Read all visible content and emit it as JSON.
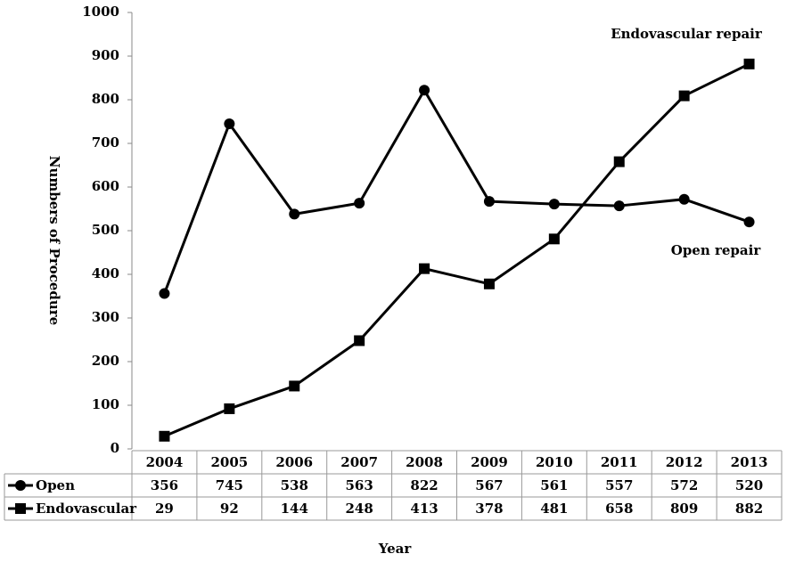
{
  "chart_data": {
    "type": "line",
    "y_label": "Numbers of Procedure",
    "x_label": "Year",
    "annotations": [
      "Endovascular repair",
      "Open repair"
    ],
    "categories": [
      "2004",
      "2005",
      "2006",
      "2007",
      "2008",
      "2009",
      "2010",
      "2011",
      "2012",
      "2013"
    ],
    "series": [
      {
        "name": "Open",
        "color": "#000000",
        "marker": "circle",
        "values": [
          356,
          745,
          538,
          563,
          822,
          567,
          561,
          557,
          572,
          520
        ]
      },
      {
        "name": "Endovascular",
        "color": "#000000",
        "marker": "square",
        "values": [
          29,
          92,
          144,
          248,
          413,
          378,
          481,
          658,
          809,
          882
        ]
      }
    ],
    "ylim": [
      0,
      1000
    ],
    "yticks": [
      0,
      100,
      200,
      300,
      400,
      500,
      600,
      700,
      800,
      900,
      1000
    ],
    "data_table": true
  }
}
